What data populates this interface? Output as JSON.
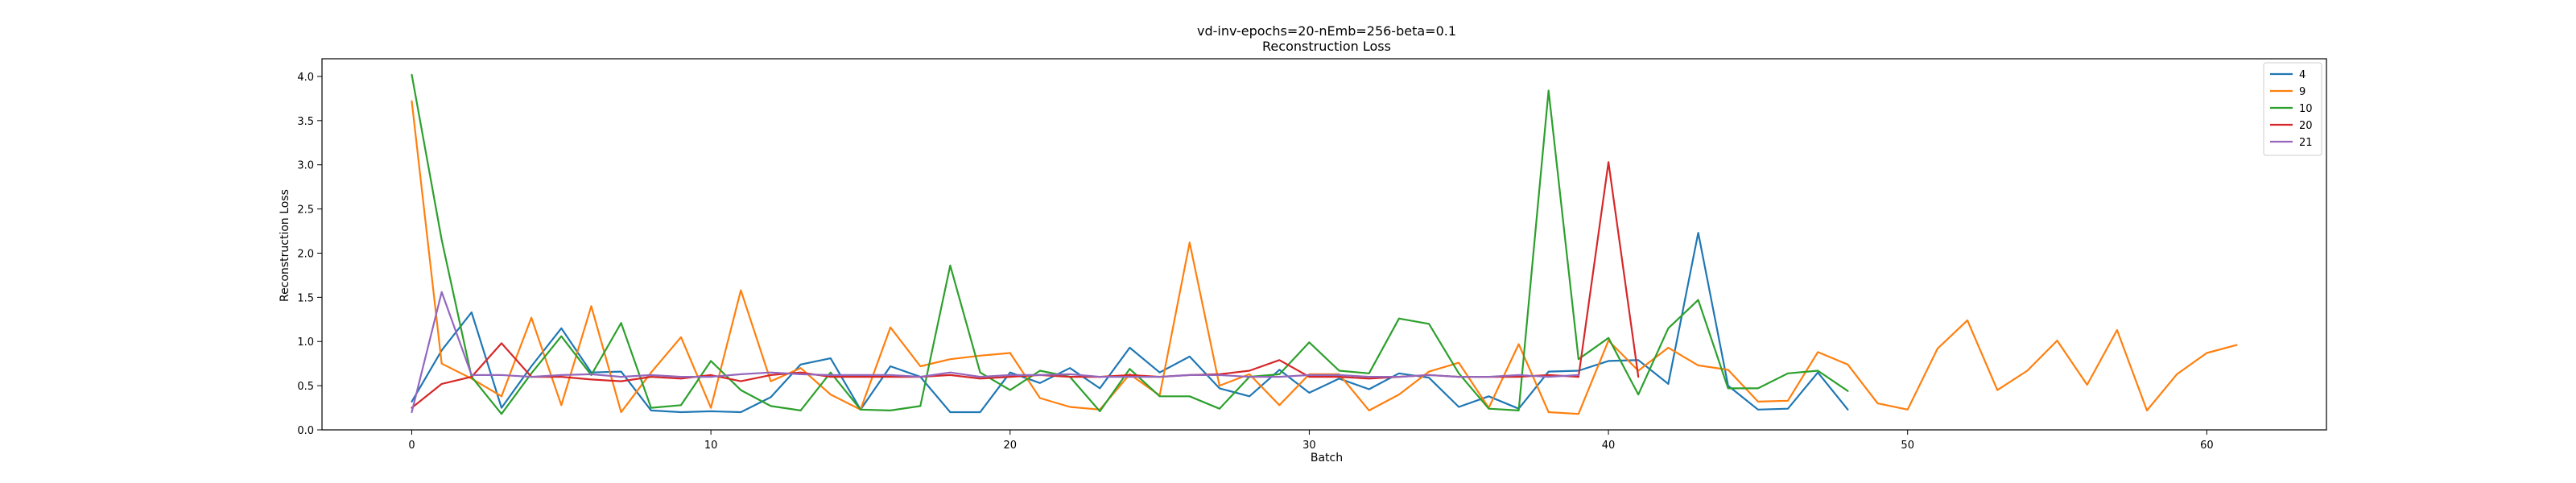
{
  "chart_data": {
    "type": "line",
    "title": "vd-inv-epochs=20-nEmb=256-beta=0.1",
    "subtitle": "Reconstruction Loss",
    "xlabel": "Batch",
    "ylabel": "Reconstruction Loss",
    "xlim": [
      -3,
      64
    ],
    "ylim": [
      0.0,
      4.2
    ],
    "xticks": [
      0,
      10,
      20,
      30,
      40,
      50,
      60
    ],
    "yticks": [
      0.0,
      0.5,
      1.0,
      1.5,
      2.0,
      2.5,
      3.0,
      3.5,
      4.0
    ],
    "grid": false,
    "legend_position": "top-right",
    "series": [
      {
        "name": "4",
        "color": "#1f77b4",
        "x": [
          0,
          1,
          2,
          3,
          4,
          5,
          6,
          7,
          8,
          9,
          10,
          11,
          12,
          13,
          14,
          15,
          16,
          17,
          18,
          19,
          20,
          21,
          22,
          23,
          24,
          25,
          26,
          27,
          28,
          29,
          30,
          31,
          32,
          33,
          34,
          35,
          36,
          37,
          38,
          39,
          40,
          41,
          42,
          43,
          44,
          45,
          46,
          47,
          48
        ],
        "y": [
          0.32,
          0.9,
          1.33,
          0.25,
          0.72,
          1.15,
          0.65,
          0.66,
          0.22,
          0.2,
          0.21,
          0.2,
          0.37,
          0.74,
          0.81,
          0.23,
          0.72,
          0.6,
          0.2,
          0.2,
          0.65,
          0.53,
          0.7,
          0.47,
          0.93,
          0.65,
          0.83,
          0.47,
          0.38,
          0.68,
          0.42,
          0.58,
          0.46,
          0.64,
          0.59,
          0.26,
          0.38,
          0.24,
          0.66,
          0.67,
          0.78,
          0.79,
          0.52,
          2.23,
          0.5,
          0.23,
          0.24,
          0.65,
          0.23
        ]
      },
      {
        "name": "9",
        "color": "#ff7f0e",
        "x": [
          0,
          1,
          2,
          3,
          4,
          5,
          6,
          7,
          8,
          9,
          10,
          11,
          12,
          13,
          14,
          15,
          16,
          17,
          18,
          19,
          20,
          21,
          22,
          23,
          24,
          25,
          26,
          27,
          28,
          29,
          30,
          31,
          32,
          33,
          34,
          35,
          36,
          37,
          38,
          39,
          40,
          41,
          42,
          43,
          44,
          45,
          46,
          47,
          48,
          49,
          50,
          51,
          52,
          53,
          54,
          55,
          56,
          57,
          58,
          59,
          60,
          61
        ],
        "y": [
          3.72,
          0.75,
          0.58,
          0.38,
          1.27,
          0.28,
          1.4,
          0.2,
          0.65,
          1.05,
          0.25,
          1.58,
          0.55,
          0.7,
          0.4,
          0.23,
          1.16,
          0.72,
          0.8,
          0.84,
          0.87,
          0.36,
          0.26,
          0.23,
          0.63,
          0.39,
          2.12,
          0.5,
          0.63,
          0.28,
          0.63,
          0.63,
          0.22,
          0.4,
          0.66,
          0.76,
          0.25,
          0.97,
          0.2,
          0.18,
          1.01,
          0.67,
          0.93,
          0.73,
          0.68,
          0.32,
          0.33,
          0.88,
          0.74,
          0.3,
          0.23,
          0.92,
          1.24,
          0.45,
          0.67,
          1.01,
          0.51,
          1.13,
          0.22,
          0.63,
          0.87,
          0.96
        ]
      },
      {
        "name": "10",
        "color": "#2ca02c",
        "x": [
          0,
          1,
          2,
          3,
          4,
          5,
          6,
          7,
          8,
          9,
          10,
          11,
          12,
          13,
          14,
          15,
          16,
          17,
          18,
          19,
          20,
          21,
          22,
          23,
          24,
          25,
          26,
          27,
          28,
          29,
          30,
          31,
          32,
          33,
          34,
          35,
          36,
          37,
          38,
          39,
          40,
          41,
          42,
          43,
          44,
          45,
          46,
          47,
          48
        ],
        "y": [
          4.02,
          2.15,
          0.6,
          0.18,
          0.64,
          1.06,
          0.62,
          1.21,
          0.25,
          0.28,
          0.78,
          0.45,
          0.27,
          0.22,
          0.65,
          0.23,
          0.22,
          0.27,
          1.86,
          0.65,
          0.45,
          0.67,
          0.6,
          0.21,
          0.69,
          0.38,
          0.38,
          0.24,
          0.6,
          0.63,
          0.99,
          0.67,
          0.64,
          1.26,
          1.2,
          0.64,
          0.24,
          0.22,
          3.84,
          0.8,
          1.04,
          0.4,
          1.15,
          1.47,
          0.47,
          0.47,
          0.64,
          0.67,
          0.44
        ]
      },
      {
        "name": "20",
        "color": "#d62728",
        "x": [
          0,
          1,
          2,
          3,
          4,
          5,
          6,
          7,
          8,
          9,
          10,
          11,
          12,
          13,
          14,
          15,
          16,
          17,
          18,
          19,
          20,
          21,
          22,
          23,
          24,
          25,
          26,
          27,
          28,
          29,
          30,
          31,
          32,
          33,
          34,
          35,
          36,
          37,
          38,
          39,
          40,
          41
        ],
        "y": [
          0.25,
          0.52,
          0.6,
          0.98,
          0.6,
          0.6,
          0.57,
          0.55,
          0.6,
          0.58,
          0.62,
          0.55,
          0.62,
          0.65,
          0.6,
          0.6,
          0.6,
          0.6,
          0.62,
          0.58,
          0.6,
          0.62,
          0.6,
          0.6,
          0.62,
          0.6,
          0.62,
          0.63,
          0.67,
          0.79,
          0.6,
          0.6,
          0.58,
          0.6,
          0.62,
          0.6,
          0.6,
          0.6,
          0.62,
          0.6,
          3.03,
          0.6
        ]
      },
      {
        "name": "21",
        "color": "#9467bd",
        "x": [
          0,
          1,
          2,
          3,
          4,
          5,
          6,
          7,
          8,
          9,
          10,
          11,
          12,
          13,
          14,
          15,
          16,
          17,
          18,
          19,
          20,
          21,
          22,
          23,
          24,
          25,
          26,
          27,
          28,
          29,
          30,
          31,
          32,
          33,
          34,
          35,
          36,
          37,
          38,
          39
        ],
        "y": [
          0.2,
          1.56,
          0.62,
          0.62,
          0.6,
          0.62,
          0.63,
          0.6,
          0.62,
          0.6,
          0.6,
          0.63,
          0.65,
          0.63,
          0.62,
          0.62,
          0.62,
          0.6,
          0.65,
          0.6,
          0.62,
          0.62,
          0.63,
          0.6,
          0.6,
          0.6,
          0.62,
          0.62,
          0.6,
          0.6,
          0.62,
          0.62,
          0.6,
          0.6,
          0.62,
          0.6,
          0.6,
          0.62,
          0.6,
          0.62
        ]
      }
    ]
  }
}
